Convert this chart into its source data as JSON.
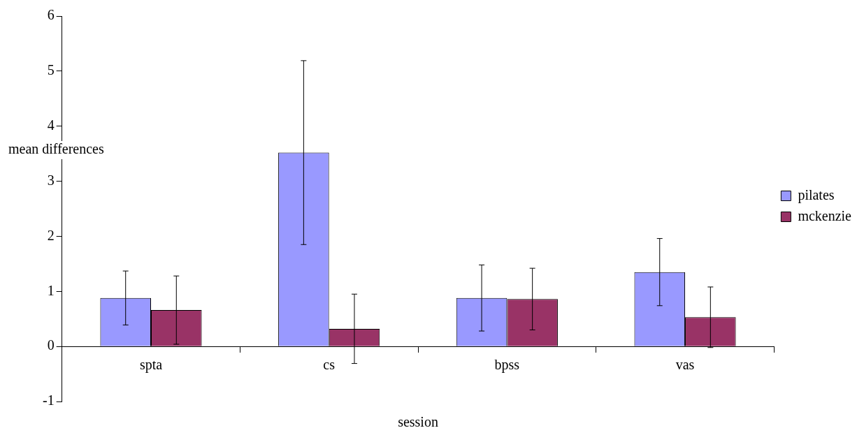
{
  "chart_data": {
    "type": "bar",
    "xlabel": "session",
    "ylabel": "mean differences",
    "categories": [
      "spta",
      "cs",
      "bpss",
      "vas"
    ],
    "series": [
      {
        "name": "pilates",
        "color": "#9999ff",
        "values": [
          0.88,
          3.52,
          0.88,
          1.35
        ],
        "errors": [
          0.49,
          1.67,
          0.6,
          0.61
        ]
      },
      {
        "name": "mckenzie",
        "color": "#993366",
        "values": [
          0.66,
          0.32,
          0.86,
          0.53
        ],
        "errors": [
          0.62,
          0.63,
          0.56,
          0.55
        ]
      }
    ],
    "ylim": [
      -1,
      6
    ],
    "yticks": [
      -1,
      0,
      1,
      2,
      3,
      4,
      5,
      6
    ],
    "grid": false,
    "legend": "right"
  }
}
